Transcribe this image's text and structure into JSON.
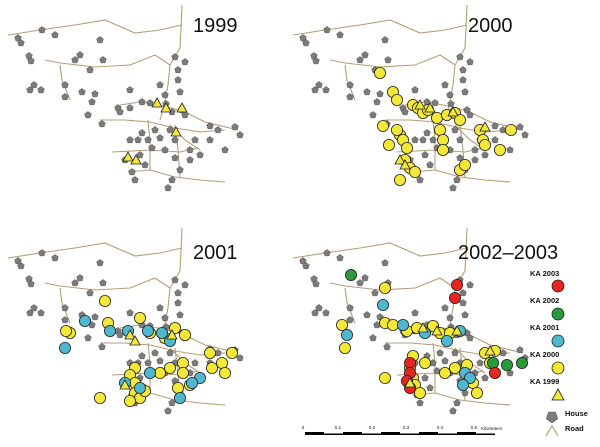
{
  "panels": [
    {
      "title": "1999"
    },
    {
      "title": "2000"
    },
    {
      "title": "2001"
    },
    {
      "title": "2002–2003"
    }
  ],
  "legend": {
    "items": [
      {
        "label": "KA 2003",
        "color": "#e8261f"
      },
      {
        "label": "KA 2002",
        "color": "#2a9b3c"
      },
      {
        "label": "KA 2001",
        "color": "#4fb8cf"
      },
      {
        "label": "KA 2000",
        "color": "#f3e838"
      },
      {
        "label": "KA 1999",
        "marker": "triangle",
        "color": "#f3e838"
      },
      {
        "label": "House",
        "marker": "pentagon",
        "color": "#7b7b7b"
      },
      {
        "label": "Road",
        "marker": "road-line",
        "color": "#b89c78"
      }
    ]
  },
  "scale_bar": {
    "ticks": [
      "0",
      "0.1",
      "0.2",
      "0.3",
      "0.4",
      "0.5"
    ],
    "unit": "Kilometers"
  },
  "colors": {
    "road": "#b89c78",
    "house": "#7b7b7b",
    "ka_1999": "#f3e838",
    "ka_2000": "#f3e838",
    "ka_2001": "#4fb8cf",
    "ka_2002": "#2a9b3c",
    "ka_2003": "#e8261f"
  }
}
